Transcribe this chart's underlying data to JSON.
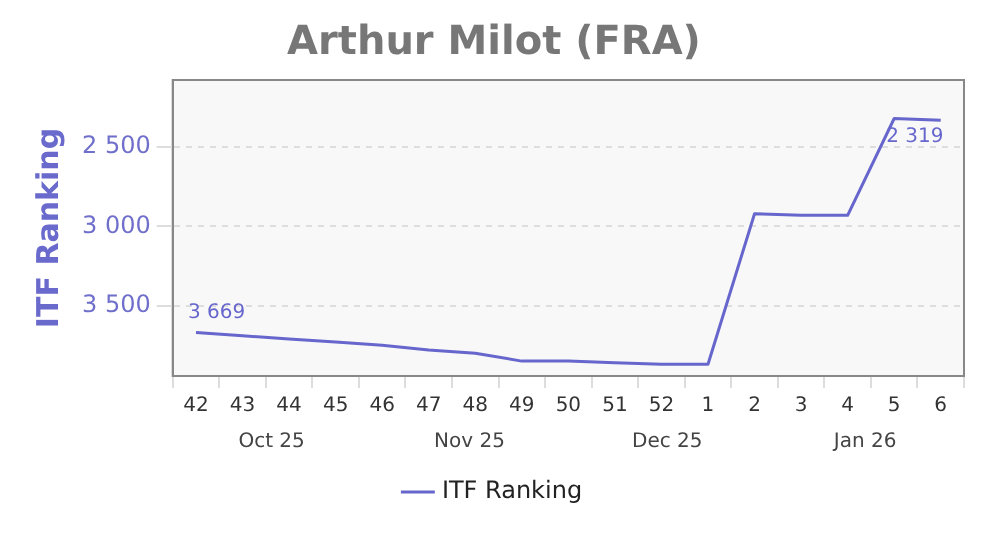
{
  "chart_data": {
    "type": "line",
    "title": "Arthur Milot (FRA)",
    "ylabel": "ITF Ranking",
    "categories": [
      "42",
      "43",
      "44",
      "45",
      "46",
      "47",
      "48",
      "49",
      "50",
      "51",
      "52",
      "1",
      "2",
      "3",
      "4",
      "5",
      "6"
    ],
    "series": [
      {
        "name": "ITF Ranking",
        "color": "#6666cc",
        "values": [
          3669,
          3690,
          3710,
          3730,
          3750,
          3780,
          3800,
          3850,
          3850,
          3860,
          3870,
          3870,
          2920,
          2930,
          2930,
          2319,
          2330
        ],
        "value_labels": [
          "3 669",
          null,
          null,
          null,
          null,
          null,
          null,
          null,
          null,
          null,
          null,
          null,
          null,
          null,
          null,
          "2 319",
          null
        ]
      }
    ],
    "ylim": [
      3944,
      2076
    ],
    "yticks": [
      {
        "value": 2500,
        "label": "2 500"
      },
      {
        "value": 3000,
        "label": "3 000"
      },
      {
        "value": 3500,
        "label": "3 500"
      }
    ],
    "grid": "y",
    "legend": "bottom",
    "marker": "none",
    "line_style": "solid",
    "annotations": [
      "Oct 25",
      "Nov 25",
      "Dec 25",
      "Jan 26"
    ]
  }
}
